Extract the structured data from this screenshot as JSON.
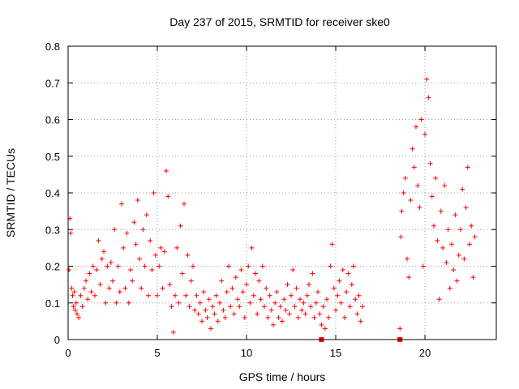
{
  "chart_data": {
    "type": "scatter",
    "title": "Day 237 of 2015, SRMTID for receiver ske0",
    "xlabel": "GPS time / hours",
    "ylabel": "SRMTID / TECUs",
    "xlim": [
      0,
      24
    ],
    "ylim": [
      0,
      0.8
    ],
    "x_ticks": [
      0,
      5,
      10,
      15,
      20
    ],
    "y_ticks": [
      0,
      0.1,
      0.2,
      0.3,
      0.4,
      0.5,
      0.6,
      0.7,
      0.8
    ],
    "grid": true,
    "marker": "+",
    "series": [
      {
        "name": "SRMTID",
        "color": "#ff0000",
        "points": [
          [
            0.05,
            0.19
          ],
          [
            0.1,
            0.33
          ],
          [
            0.15,
            0.29
          ],
          [
            0.2,
            0.14
          ],
          [
            0.25,
            0.12
          ],
          [
            0.3,
            0.09
          ],
          [
            0.35,
            0.13
          ],
          [
            0.4,
            0.08
          ],
          [
            0.45,
            0.1
          ],
          [
            0.5,
            0.07
          ],
          [
            0.6,
            0.06
          ],
          [
            0.7,
            0.12
          ],
          [
            0.8,
            0.09
          ],
          [
            0.9,
            0.14
          ],
          [
            1.0,
            0.16
          ],
          [
            1.1,
            0.11
          ],
          [
            1.2,
            0.18
          ],
          [
            1.3,
            0.13
          ],
          [
            1.4,
            0.2
          ],
          [
            1.5,
            0.12
          ],
          [
            1.6,
            0.19
          ],
          [
            1.7,
            0.27
          ],
          [
            1.8,
            0.15
          ],
          [
            1.9,
            0.22
          ],
          [
            2.0,
            0.24
          ],
          [
            2.1,
            0.1
          ],
          [
            2.2,
            0.2
          ],
          [
            2.3,
            0.14
          ],
          [
            2.4,
            0.21
          ],
          [
            2.5,
            0.16
          ],
          [
            2.6,
            0.3
          ],
          [
            2.7,
            0.1
          ],
          [
            2.8,
            0.2
          ],
          [
            2.9,
            0.13
          ],
          [
            3.0,
            0.37
          ],
          [
            3.1,
            0.25
          ],
          [
            3.2,
            0.14
          ],
          [
            3.3,
            0.29
          ],
          [
            3.4,
            0.1
          ],
          [
            3.5,
            0.19
          ],
          [
            3.6,
            0.16
          ],
          [
            3.7,
            0.32
          ],
          [
            3.8,
            0.26
          ],
          [
            3.9,
            0.38
          ],
          [
            4.0,
            0.22
          ],
          [
            4.1,
            0.14
          ],
          [
            4.2,
            0.3
          ],
          [
            4.3,
            0.2
          ],
          [
            4.4,
            0.34
          ],
          [
            4.5,
            0.12
          ],
          [
            4.6,
            0.27
          ],
          [
            4.7,
            0.19
          ],
          [
            4.8,
            0.4
          ],
          [
            4.9,
            0.23
          ],
          [
            5.0,
            0.12
          ],
          [
            5.1,
            0.2
          ],
          [
            5.2,
            0.25
          ],
          [
            5.3,
            0.14
          ],
          [
            5.4,
            0.24
          ],
          [
            5.5,
            0.46
          ],
          [
            5.6,
            0.39
          ],
          [
            5.7,
            0.15
          ],
          [
            5.8,
            0.09
          ],
          [
            5.9,
            0.02
          ],
          [
            6.0,
            0.12
          ],
          [
            6.1,
            0.25
          ],
          [
            6.2,
            0.1
          ],
          [
            6.3,
            0.31
          ],
          [
            6.4,
            0.18
          ],
          [
            6.5,
            0.37
          ],
          [
            6.6,
            0.12
          ],
          [
            6.7,
            0.23
          ],
          [
            6.8,
            0.09
          ],
          [
            6.9,
            0.16
          ],
          [
            7.0,
            0.2
          ],
          [
            7.1,
            0.08
          ],
          [
            7.2,
            0.12
          ],
          [
            7.3,
            0.07
          ],
          [
            7.4,
            0.1
          ],
          [
            7.5,
            0.05
          ],
          [
            7.6,
            0.13
          ],
          [
            7.7,
            0.08
          ],
          [
            7.8,
            0.06
          ],
          [
            7.9,
            0.11
          ],
          [
            8.0,
            0.03
          ],
          [
            8.1,
            0.09
          ],
          [
            8.2,
            0.07
          ],
          [
            8.3,
            0.12
          ],
          [
            8.4,
            0.05
          ],
          [
            8.5,
            0.1
          ],
          [
            8.6,
            0.16
          ],
          [
            8.7,
            0.08
          ],
          [
            8.8,
            0.06
          ],
          [
            8.9,
            0.13
          ],
          [
            9.0,
            0.2
          ],
          [
            9.1,
            0.09
          ],
          [
            9.2,
            0.14
          ],
          [
            9.3,
            0.07
          ],
          [
            9.4,
            0.17
          ],
          [
            9.5,
            0.11
          ],
          [
            9.6,
            0.09
          ],
          [
            9.7,
            0.19
          ],
          [
            9.8,
            0.13
          ],
          [
            9.9,
            0.06
          ],
          [
            10.0,
            0.15
          ],
          [
            10.1,
            0.2
          ],
          [
            10.2,
            0.1
          ],
          [
            10.3,
            0.25
          ],
          [
            10.4,
            0.12
          ],
          [
            10.5,
            0.18
          ],
          [
            10.6,
            0.07
          ],
          [
            10.7,
            0.16
          ],
          [
            10.8,
            0.11
          ],
          [
            10.9,
            0.2
          ],
          [
            11.0,
            0.09
          ],
          [
            11.1,
            0.14
          ],
          [
            11.2,
            0.06
          ],
          [
            11.3,
            0.12
          ],
          [
            11.4,
            0.08
          ],
          [
            11.5,
            0.04
          ],
          [
            11.6,
            0.1
          ],
          [
            11.7,
            0.13
          ],
          [
            11.8,
            0.06
          ],
          [
            11.9,
            0.09
          ],
          [
            12.0,
            0.05
          ],
          [
            12.1,
            0.11
          ],
          [
            12.2,
            0.08
          ],
          [
            12.3,
            0.15
          ],
          [
            12.4,
            0.07
          ],
          [
            12.5,
            0.12
          ],
          [
            12.6,
            0.19
          ],
          [
            12.7,
            0.09
          ],
          [
            12.8,
            0.14
          ],
          [
            12.9,
            0.06
          ],
          [
            13.0,
            0.11
          ],
          [
            13.1,
            0.08
          ],
          [
            13.2,
            0.1
          ],
          [
            13.3,
            0.07
          ],
          [
            13.4,
            0.12
          ],
          [
            13.5,
            0.15
          ],
          [
            13.6,
            0.09
          ],
          [
            13.7,
            0.18
          ],
          [
            13.8,
            0.06
          ],
          [
            13.9,
            0.1
          ],
          [
            14.0,
            0.13
          ],
          [
            14.1,
            0.07
          ],
          [
            14.2,
            0.04
          ],
          [
            14.3,
            0.09
          ],
          [
            14.4,
            0.03
          ],
          [
            14.5,
            0.11
          ],
          [
            14.6,
            0.06
          ],
          [
            14.7,
            0.2
          ],
          [
            14.8,
            0.26
          ],
          [
            14.9,
            0.14
          ],
          [
            15.0,
            0.08
          ],
          [
            15.1,
            0.12
          ],
          [
            15.2,
            0.16
          ],
          [
            15.3,
            0.1
          ],
          [
            15.4,
            0.19
          ],
          [
            15.5,
            0.06
          ],
          [
            15.6,
            0.13
          ],
          [
            15.7,
            0.18
          ],
          [
            15.8,
            0.09
          ],
          [
            15.9,
            0.15
          ],
          [
            16.0,
            0.2
          ],
          [
            16.1,
            0.11
          ],
          [
            16.2,
            0.07
          ],
          [
            16.3,
            0.12
          ],
          [
            16.4,
            0.05
          ],
          [
            16.5,
            0.09
          ],
          [
            18.6,
            0.03
          ],
          [
            18.65,
            0.28
          ],
          [
            18.7,
            0.35
          ],
          [
            18.8,
            0.4
          ],
          [
            18.9,
            0.44
          ],
          [
            19.0,
            0.22
          ],
          [
            19.1,
            0.17
          ],
          [
            19.2,
            0.38
          ],
          [
            19.3,
            0.52
          ],
          [
            19.4,
            0.47
          ],
          [
            19.5,
            0.58
          ],
          [
            19.6,
            0.42
          ],
          [
            19.7,
            0.36
          ],
          [
            19.8,
            0.6
          ],
          [
            19.9,
            0.2
          ],
          [
            20.0,
            0.56
          ],
          [
            20.1,
            0.71
          ],
          [
            20.2,
            0.66
          ],
          [
            20.3,
            0.48
          ],
          [
            20.4,
            0.39
          ],
          [
            20.5,
            0.31
          ],
          [
            20.6,
            0.44
          ],
          [
            20.7,
            0.27
          ],
          [
            20.8,
            0.11
          ],
          [
            20.9,
            0.35
          ],
          [
            21.0,
            0.25
          ],
          [
            21.1,
            0.42
          ],
          [
            21.2,
            0.21
          ],
          [
            21.3,
            0.3
          ],
          [
            21.4,
            0.14
          ],
          [
            21.5,
            0.26
          ],
          [
            21.6,
            0.19
          ],
          [
            21.7,
            0.34
          ],
          [
            21.8,
            0.16
          ],
          [
            21.9,
            0.23
          ],
          [
            22.0,
            0.3
          ],
          [
            22.1,
            0.41
          ],
          [
            22.2,
            0.22
          ],
          [
            22.3,
            0.36
          ],
          [
            22.4,
            0.47
          ],
          [
            22.5,
            0.26
          ],
          [
            22.6,
            0.31
          ],
          [
            22.7,
            0.17
          ],
          [
            22.8,
            0.28
          ]
        ]
      }
    ],
    "tick_marks": [
      {
        "x": 14.2,
        "y": 0.0
      },
      {
        "x": 18.6,
        "y": 0.0
      }
    ]
  }
}
